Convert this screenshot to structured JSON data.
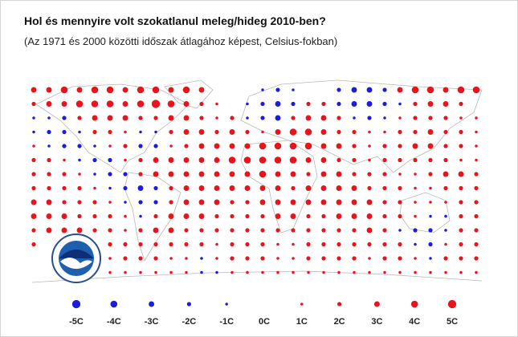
{
  "title": "Hol és mennyire volt szokatlanul meleg/hideg 2010-ben?",
  "subtitle": "(Az 1971 és 2000 közötti időszak átlagához képest, Celsius-fokban)",
  "map": {
    "colors": {
      "negative": "#1c1ce0",
      "positive": "#e8141c"
    },
    "rows": [
      [
        3,
        3,
        4,
        3,
        4,
        4,
        3,
        4,
        4,
        3,
        4,
        3,
        null,
        null,
        null,
        -1,
        -2,
        -1,
        null,
        null,
        -2,
        -3,
        -3,
        -2,
        3,
        4,
        4,
        3,
        4,
        4
      ],
      [
        2,
        3,
        3,
        4,
        4,
        4,
        3,
        4,
        5,
        4,
        3,
        2,
        1,
        null,
        -1,
        -2,
        -3,
        -2,
        2,
        2,
        -2,
        -3,
        -3,
        -2,
        -1,
        2,
        3,
        3,
        2,
        null
      ],
      [
        -1,
        -1,
        -2,
        2,
        3,
        3,
        3,
        2,
        2,
        3,
        3,
        2,
        1,
        2,
        -1,
        -2,
        -3,
        2,
        3,
        3,
        2,
        -1,
        -2,
        -1,
        1,
        2,
        2,
        2,
        1,
        1
      ],
      [
        -1,
        -2,
        -2,
        -1,
        2,
        2,
        1,
        -1,
        -1,
        2,
        3,
        3,
        2,
        3,
        2,
        1,
        3,
        4,
        4,
        3,
        2,
        2,
        1,
        1,
        2,
        2,
        3,
        2,
        2,
        1
      ],
      [
        1,
        -1,
        -2,
        -2,
        -1,
        1,
        2,
        -2,
        -2,
        1,
        2,
        3,
        3,
        3,
        3,
        4,
        4,
        4,
        4,
        3,
        3,
        2,
        1,
        2,
        2,
        3,
        3,
        2,
        2,
        1
      ],
      [
        2,
        2,
        1,
        -1,
        -2,
        -2,
        1,
        2,
        3,
        3,
        3,
        3,
        3,
        4,
        4,
        4,
        4,
        4,
        3,
        3,
        2,
        2,
        1,
        2,
        2,
        2,
        2,
        2,
        1,
        1
      ],
      [
        2,
        2,
        2,
        1,
        -1,
        -2,
        -2,
        2,
        3,
        3,
        3,
        3,
        3,
        3,
        3,
        4,
        3,
        3,
        2,
        3,
        3,
        2,
        2,
        2,
        1,
        1,
        2,
        3,
        3,
        2
      ],
      [
        2,
        2,
        2,
        2,
        1,
        -1,
        -2,
        -3,
        -2,
        2,
        3,
        3,
        3,
        3,
        3,
        3,
        3,
        2,
        3,
        3,
        3,
        3,
        2,
        2,
        2,
        1,
        1,
        2,
        2,
        2
      ],
      [
        3,
        3,
        2,
        2,
        2,
        1,
        -1,
        -2,
        -2,
        2,
        3,
        3,
        3,
        2,
        2,
        3,
        3,
        3,
        3,
        3,
        3,
        3,
        3,
        2,
        2,
        1,
        1,
        1,
        2,
        2
      ],
      [
        3,
        3,
        3,
        2,
        2,
        2,
        1,
        -1,
        2,
        3,
        3,
        3,
        2,
        2,
        2,
        2,
        3,
        3,
        2,
        2,
        3,
        3,
        3,
        2,
        2,
        1,
        -1,
        -1,
        2,
        2
      ],
      [
        2,
        3,
        3,
        3,
        2,
        2,
        1,
        2,
        3,
        3,
        2,
        2,
        2,
        2,
        2,
        2,
        2,
        2,
        2,
        2,
        2,
        2,
        3,
        2,
        -1,
        -2,
        -2,
        -1,
        2,
        2
      ],
      [
        2,
        null,
        null,
        null,
        null,
        2,
        2,
        2,
        2,
        2,
        2,
        2,
        1,
        2,
        2,
        2,
        1,
        1,
        2,
        2,
        2,
        2,
        2,
        2,
        2,
        -1,
        -2,
        1,
        2,
        2
      ],
      [
        null,
        null,
        null,
        null,
        null,
        1,
        2,
        2,
        2,
        1,
        1,
        -1,
        1,
        2,
        2,
        2,
        1,
        1,
        2,
        2,
        2,
        2,
        1,
        2,
        2,
        1,
        -1,
        2,
        2,
        2
      ],
      [
        null,
        null,
        null,
        null,
        null,
        1,
        1,
        1,
        1,
        1,
        1,
        -1,
        -1,
        1,
        1,
        1,
        1,
        1,
        1,
        1,
        1,
        1,
        1,
        1,
        1,
        1,
        1,
        1,
        1,
        1
      ]
    ]
  },
  "legend": [
    {
      "value": -5,
      "label": "-5C"
    },
    {
      "value": -4,
      "label": "-4C"
    },
    {
      "value": -3,
      "label": "-3C"
    },
    {
      "value": -2,
      "label": "-2C"
    },
    {
      "value": -1,
      "label": "-1C"
    },
    {
      "value": 0,
      "label": "0C"
    },
    {
      "value": 1,
      "label": "1C"
    },
    {
      "value": 2,
      "label": "2C"
    },
    {
      "value": 3,
      "label": "3C"
    },
    {
      "value": 4,
      "label": "4C"
    },
    {
      "value": 5,
      "label": "5C"
    }
  ]
}
